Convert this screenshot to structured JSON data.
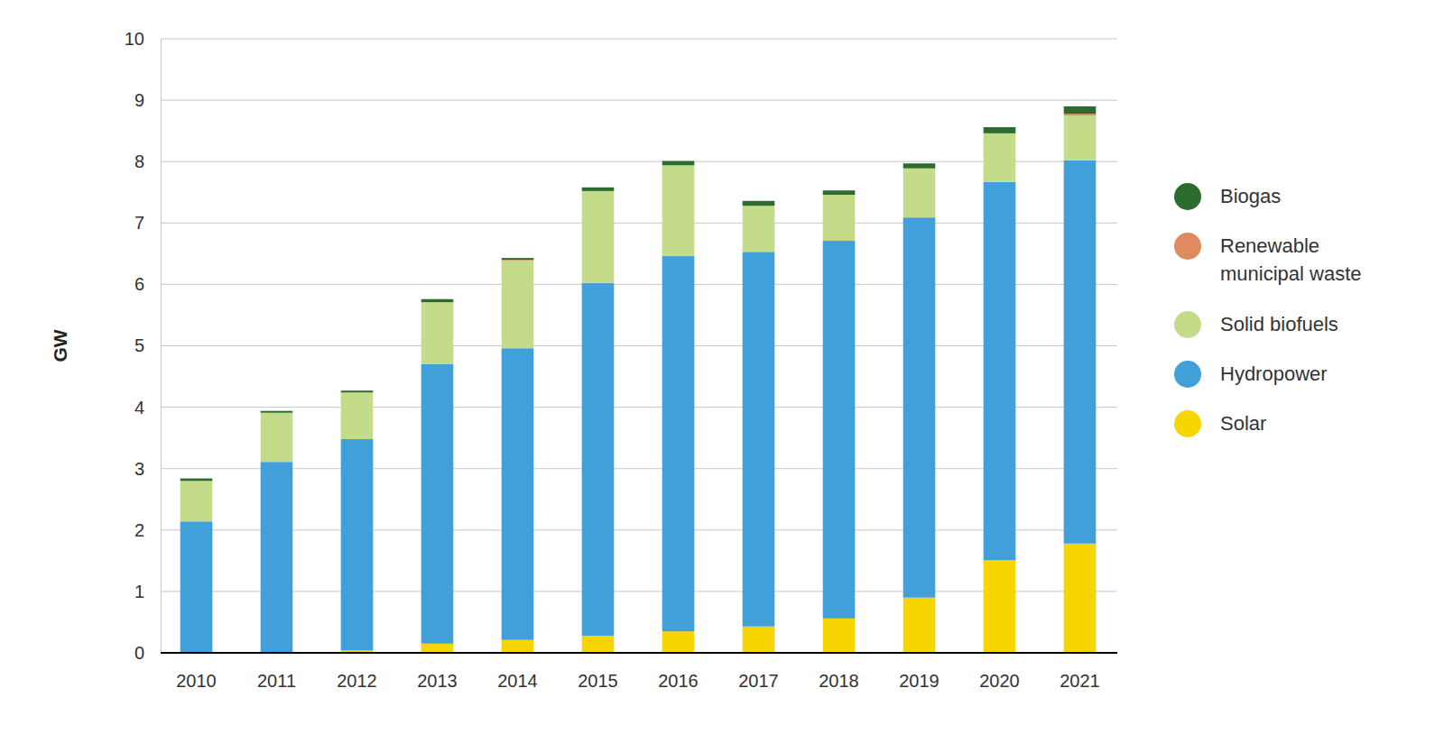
{
  "chart_data": {
    "type": "bar",
    "stacked": true,
    "grid": true,
    "legend": "right",
    "y_label": "GW",
    "categories": [
      "2010",
      "2011",
      "2012",
      "2013",
      "2014",
      "2015",
      "2016",
      "2017",
      "2018",
      "2019",
      "2020",
      "2021"
    ],
    "ylim": [
      0,
      10
    ],
    "yticks": [
      0,
      1,
      2,
      3,
      4,
      5,
      6,
      7,
      8,
      9,
      10
    ],
    "series": [
      {
        "name": "Solar",
        "color": "#f7d500",
        "values": [
          0,
          0,
          0.04,
          0.15,
          0.21,
          0.28,
          0.35,
          0.43,
          0.56,
          0.9,
          1.51,
          1.78
        ]
      },
      {
        "name": "Hydropower",
        "color": "#419fd9",
        "values": [
          2.14,
          3.11,
          3.44,
          4.55,
          4.75,
          5.74,
          6.11,
          6.1,
          6.15,
          6.19,
          6.16,
          6.24
        ]
      },
      {
        "name": "Solid biofuels",
        "color": "#c4dc8a",
        "values": [
          0.66,
          0.8,
          0.76,
          1.01,
          1.43,
          1.5,
          1.48,
          0.75,
          0.75,
          0.8,
          0.79,
          0.73
        ]
      },
      {
        "name": "Renewable municipal waste",
        "color": "#e08a5f",
        "values": [
          0,
          0,
          0,
          0,
          0.01,
          0,
          0,
          0,
          0,
          0,
          0,
          0.03
        ]
      },
      {
        "name": "Biogas",
        "color": "#2e6b2f",
        "values": [
          0.04,
          0.03,
          0.03,
          0.05,
          0.03,
          0.06,
          0.07,
          0.08,
          0.07,
          0.08,
          0.1,
          0.12
        ]
      }
    ]
  }
}
